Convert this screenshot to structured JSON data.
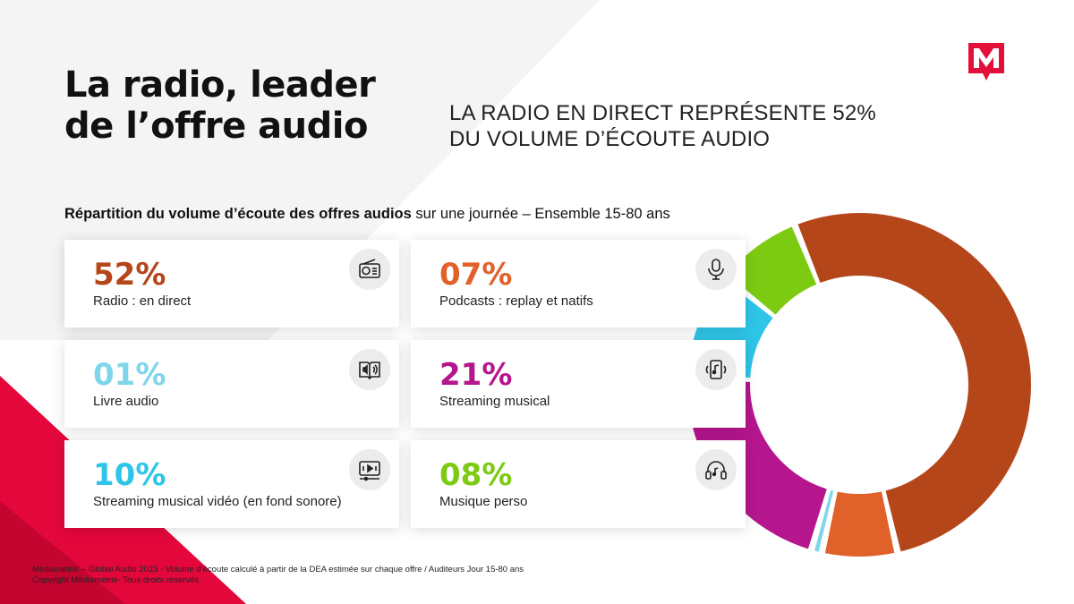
{
  "header": {
    "title_line1": "La radio, leader",
    "title_line2": "de l’offre audio",
    "subtitle_line1": "LA RADIO EN DIRECT REPRÉSENTE 52%",
    "subtitle_line2": "DU VOLUME D’ÉCOUTE AUDIO"
  },
  "section": {
    "label_bold": "Répartition du volume d’écoute des offres audios",
    "label_rest": " sur une journée – Ensemble 15-80 ans"
  },
  "cards": [
    {
      "pct": "52%",
      "label": "Radio : en direct",
      "color": "#B5461A",
      "icon": "radio-icon"
    },
    {
      "pct": "07%",
      "label": "Podcasts : replay et natifs",
      "color": "#E0612A",
      "icon": "microphone-icon"
    },
    {
      "pct": "01%",
      "label": "Livre audio",
      "color": "#7FD6EA",
      "icon": "audiobook-icon"
    },
    {
      "pct": "21%",
      "label": "Streaming musical",
      "color": "#B5168E",
      "icon": "music-streaming-icon"
    },
    {
      "pct": "10%",
      "label": "Streaming musical vidéo (en fond sonore)",
      "color": "#2EC5E8",
      "icon": "video-streaming-icon"
    },
    {
      "pct": "08%",
      "label": "Musique perso",
      "color": "#7CCB12",
      "icon": "headphones-icon"
    }
  ],
  "chart_data": {
    "type": "pie",
    "variant": "donut",
    "categories": [
      "Radio : en direct",
      "Podcasts : replay et natifs",
      "Livre audio",
      "Streaming musical",
      "Streaming musical vidéo (en fond sonore)",
      "Musique perso"
    ],
    "values": [
      52,
      7,
      1,
      21,
      10,
      8
    ],
    "colors": [
      "#B5461A",
      "#E0612A",
      "#7FD6EA",
      "#B5168E",
      "#2EC5E8",
      "#7CCB12"
    ],
    "title": "Répartition du volume d’écoute des offres audios sur une journée – Ensemble 15-80 ans"
  },
  "footer": {
    "line1": "Médiamétrie – Global Audio 2023 - Volume d’écoute calculé à partir de la DEA estimée sur chaque offre / Auditeurs Jour 15-80 ans",
    "line2": "Copyright Médiamétrie- Tous droits réservés"
  },
  "brand": {
    "accent": "#E3073C",
    "logo_color": "#E3103A"
  }
}
